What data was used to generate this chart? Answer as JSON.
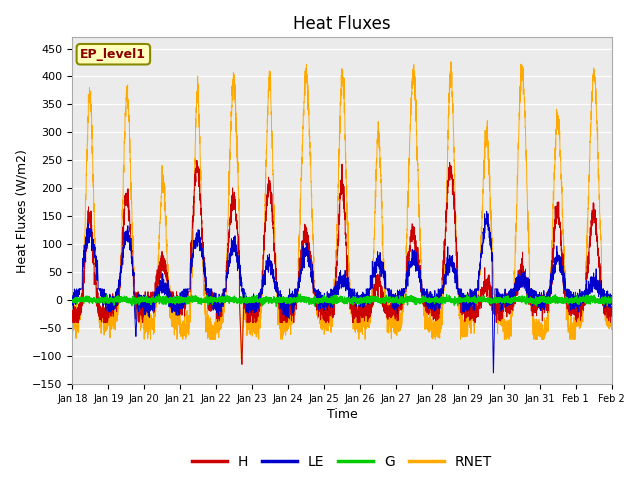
{
  "title": "Heat Fluxes",
  "xlabel": "Time",
  "ylabel": "Heat Fluxes (W/m2)",
  "ylim": [
    -150,
    470
  ],
  "yticks": [
    -150,
    -100,
    -50,
    0,
    50,
    100,
    150,
    200,
    250,
    300,
    350,
    400,
    450
  ],
  "colors": {
    "H": "#cc0000",
    "LE": "#0000cc",
    "G": "#00cc00",
    "RNET": "#ffaa00"
  },
  "legend_label": "EP_level1",
  "legend_box_color": "#ffffbb",
  "legend_box_edge": "#888800",
  "background_color": "#ebebeb",
  "n_days": 15,
  "start_day": 18,
  "points_per_minute": 1,
  "title_fontsize": 12,
  "label_fontsize": 9,
  "tick_fontsize": 8
}
